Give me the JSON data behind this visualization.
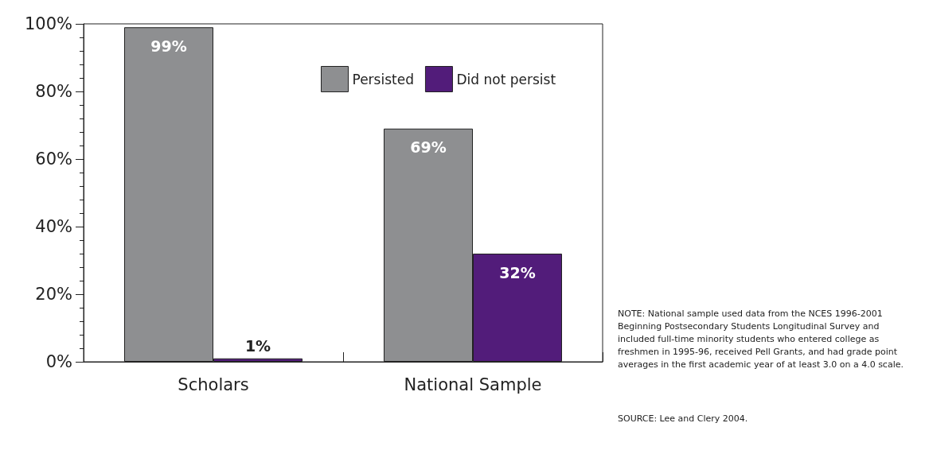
{
  "chart_data": {
    "type": "bar",
    "categories": [
      "Scholars",
      "National Sample"
    ],
    "series": [
      {
        "name": "Persisted",
        "color": "#8e8f91",
        "values": [
          99,
          69
        ],
        "value_labels": [
          "99%",
          "69%"
        ]
      },
      {
        "name": "Did not persist",
        "color": "#521c7a",
        "values": [
          1,
          32
        ],
        "value_labels": [
          "1%",
          "32%"
        ]
      }
    ],
    "ylim": [
      0,
      100
    ],
    "yticks": [
      {
        "value": 0,
        "label": "0%"
      },
      {
        "value": 20,
        "label": "20%"
      },
      {
        "value": 40,
        "label": "40%"
      },
      {
        "value": 60,
        "label": "60%"
      },
      {
        "value": 80,
        "label": "80%"
      },
      {
        "value": 100,
        "label": "100%"
      }
    ],
    "grid": false,
    "legend": "top right",
    "annotations": [
      "NOTE: National sample used data from the NCES 1996-2001 Beginning Postsecondary Students Longitudinal Survey and included full-time minority students who entered college as freshmen in 1995-96, received Pell Grants, and had grade point averages in the first academic year of at least 3.0 on a 4.0 scale.",
      "SOURCE: Lee and Clery 2004."
    ]
  }
}
